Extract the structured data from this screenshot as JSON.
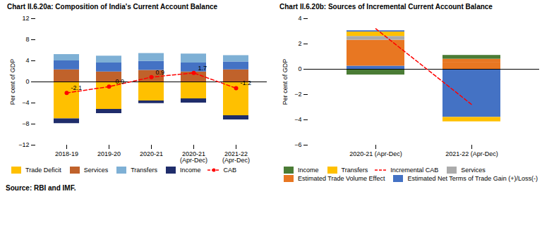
{
  "chart_data": [
    {
      "type": "bar",
      "stacked": true,
      "title": "Chart II.6.20a: Composition of India's Current Account Balance",
      "categories": [
        "2018-19",
        "2019-20",
        "2020-21",
        "2020-21\n(Apr-Dec)",
        "2021-22\n(Apr-Dec)"
      ],
      "ylabel": "Per cent of GDP",
      "ylim": [
        -12,
        12
      ],
      "yticks": [
        -12,
        -8,
        -4,
        0,
        4,
        8,
        12
      ],
      "grid": false,
      "legend": "bottom",
      "series": [
        {
          "name": "Trade Deficit",
          "color": "#FFC000",
          "values": [
            -7.0,
            -5.2,
            -3.6,
            -3.2,
            -6.4
          ]
        },
        {
          "name": "Services",
          "color": "#C0622B",
          "values": [
            2.3,
            1.9,
            2.2,
            1.9,
            2.3
          ]
        },
        {
          "name": null,
          "color": "#4472C4",
          "values": [
            1.7,
            1.7,
            1.7,
            1.7,
            1.5
          ]
        },
        {
          "name": "Transfers",
          "color": "#7EB0D5",
          "values": [
            1.2,
            1.3,
            1.5,
            1.7,
            1.2
          ]
        },
        {
          "name": "Income",
          "color": "#1F2D6B",
          "values": [
            -0.9,
            -0.8,
            -0.5,
            -0.8,
            -0.8
          ]
        },
        {
          "name": "CAB",
          "type": "line",
          "color": "red",
          "line_style": "dashed",
          "marker": "circle",
          "data_labels": true,
          "values": [
            -2.1,
            -0.9,
            0.9,
            1.7,
            -1.2
          ]
        }
      ]
    },
    {
      "type": "bar",
      "stacked": true,
      "title": "Chart II.6.20b: Sources of Incremental Current Account Balance",
      "categories": [
        "2020-21 (Apr-Dec)",
        "2021-22 (Apr-Dec)"
      ],
      "ylabel": "Per cent of GDP",
      "ylim": [
        -6,
        4
      ],
      "yticks": [
        -6,
        -4,
        -2,
        0,
        2,
        4
      ],
      "grid": false,
      "legend": "bottom",
      "series": [
        {
          "name": null,
          "color": "#4472C4",
          "values": [
            0.25,
            -3.8
          ]
        },
        {
          "name": null,
          "color": "#E87722",
          "values": [
            2.05,
            null
          ]
        },
        {
          "name": "Income",
          "color": "#4A7C35",
          "values": [
            -0.45,
            null
          ]
        },
        {
          "name": "Transfers",
          "color": "#FFC000",
          "values": [
            null,
            -0.35
          ]
        },
        {
          "name": "Incremental CAB",
          "type": "line",
          "color": "red",
          "line_style": "dashed",
          "values": [
            3.2,
            -2.8
          ]
        },
        {
          "name": "Services",
          "color": "#ABABAB",
          "values": [
            0.3,
            null
          ]
        },
        {
          "name": null,
          "color": "#FFC000",
          "values": [
            0.35,
            null
          ]
        },
        {
          "name": "Estimated Trade Volume Effect",
          "color": "#E87722",
          "values": [
            null,
            0.55
          ]
        },
        {
          "name": null,
          "color": "#E87722",
          "values": [
            null,
            0.25
          ]
        },
        {
          "name": null,
          "color": "#4A7C35",
          "values": [
            null,
            0.3
          ]
        },
        {
          "name": "Estimated Net Terms of Trade Gain (+)/Loss(-)",
          "color": "#4472C4",
          "values": [
            0.1,
            null
          ]
        }
      ]
    }
  ],
  "caption": "Source: RBI and IMF."
}
